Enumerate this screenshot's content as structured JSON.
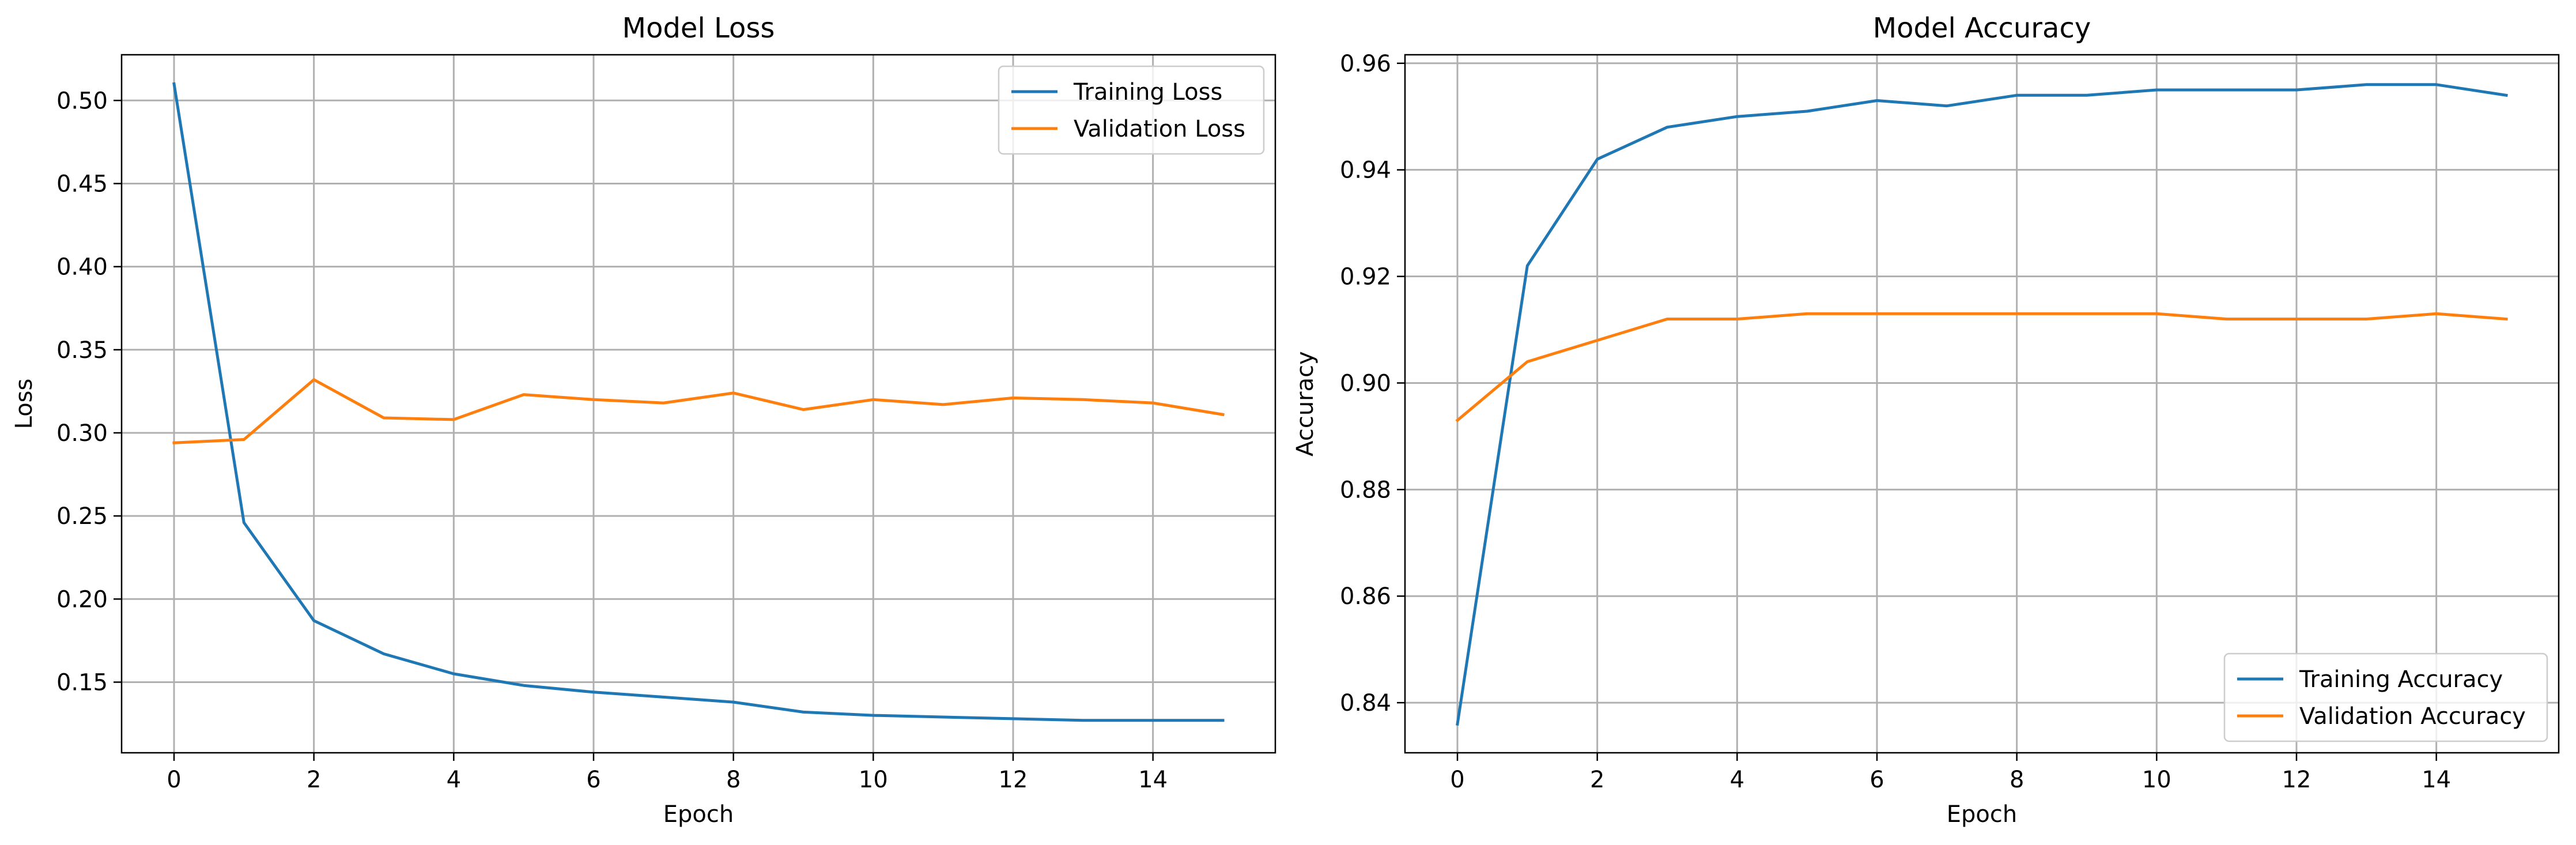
{
  "chart_data": [
    {
      "type": "line",
      "title": "Model Loss",
      "xlabel": "Epoch",
      "ylabel": "Loss",
      "x": [
        0,
        1,
        2,
        3,
        4,
        5,
        6,
        7,
        8,
        9,
        10,
        11,
        12,
        13,
        14,
        15
      ],
      "xlim": [
        -0.75,
        15.75
      ],
      "ylim": [
        0.1075,
        0.5275
      ],
      "xticks": [
        0,
        2,
        4,
        6,
        8,
        10,
        12,
        14
      ],
      "yticks": [
        0.15,
        0.2,
        0.25,
        0.3,
        0.35,
        0.4,
        0.45,
        0.5
      ],
      "xtick_labels": [
        "0",
        "2",
        "4",
        "6",
        "8",
        "10",
        "12",
        "14"
      ],
      "ytick_labels": [
        "0.15",
        "0.20",
        "0.25",
        "0.30",
        "0.35",
        "0.40",
        "0.45",
        "0.50"
      ],
      "grid": true,
      "legend_position": "top-right",
      "series": [
        {
          "name": "Training Loss",
          "color": "#1f77b4",
          "values": [
            0.51,
            0.246,
            0.187,
            0.167,
            0.155,
            0.148,
            0.144,
            0.141,
            0.138,
            0.132,
            0.13,
            0.129,
            0.128,
            0.127,
            0.127,
            0.127
          ]
        },
        {
          "name": "Validation Loss",
          "color": "#ff7f0e",
          "values": [
            0.294,
            0.296,
            0.332,
            0.309,
            0.308,
            0.323,
            0.32,
            0.318,
            0.324,
            0.314,
            0.32,
            0.317,
            0.321,
            0.32,
            0.318,
            0.311
          ]
        }
      ]
    },
    {
      "type": "line",
      "title": "Model Accuracy",
      "xlabel": "Epoch",
      "ylabel": "Accuracy",
      "x": [
        0,
        1,
        2,
        3,
        4,
        5,
        6,
        7,
        8,
        9,
        10,
        11,
        12,
        13,
        14,
        15
      ],
      "xlim": [
        -0.75,
        15.75
      ],
      "ylim": [
        0.8306,
        0.9616
      ],
      "xticks": [
        0,
        2,
        4,
        6,
        8,
        10,
        12,
        14
      ],
      "yticks": [
        0.84,
        0.86,
        0.88,
        0.9,
        0.92,
        0.94,
        0.96
      ],
      "xtick_labels": [
        "0",
        "2",
        "4",
        "6",
        "8",
        "10",
        "12",
        "14"
      ],
      "ytick_labels": [
        "0.84",
        "0.86",
        "0.88",
        "0.90",
        "0.92",
        "0.94",
        "0.96"
      ],
      "grid": true,
      "legend_position": "bottom-right",
      "series": [
        {
          "name": "Training Accuracy",
          "color": "#1f77b4",
          "values": [
            0.836,
            0.922,
            0.942,
            0.948,
            0.95,
            0.951,
            0.953,
            0.952,
            0.954,
            0.954,
            0.955,
            0.955,
            0.955,
            0.956,
            0.956,
            0.954
          ]
        },
        {
          "name": "Validation Accuracy",
          "color": "#ff7f0e",
          "values": [
            0.893,
            0.904,
            0.908,
            0.912,
            0.912,
            0.913,
            0.913,
            0.913,
            0.913,
            0.913,
            0.913,
            0.912,
            0.912,
            0.912,
            0.913,
            0.912
          ]
        }
      ]
    }
  ]
}
